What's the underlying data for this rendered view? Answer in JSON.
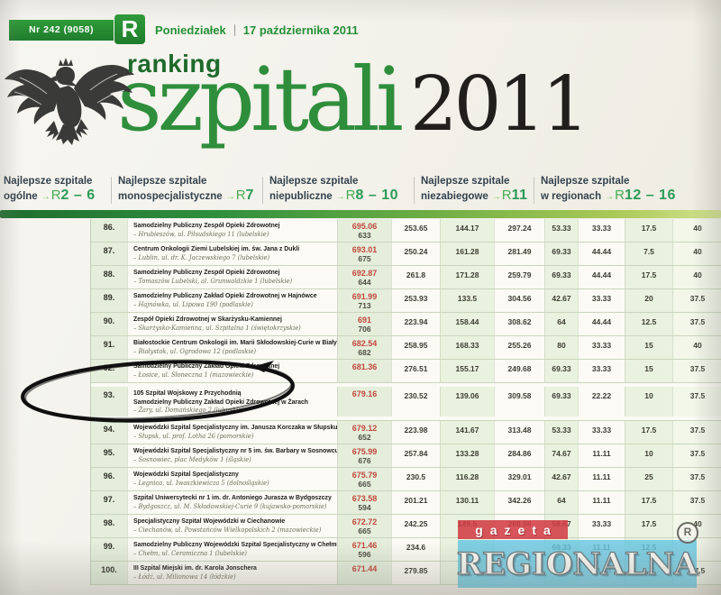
{
  "masthead": {
    "issue_no": "Nr 242 (9058)",
    "brand_letter": "R",
    "weekday": "Poniedziałek",
    "date": "17 października 2011"
  },
  "title": {
    "kicker": "ranking",
    "word": "szpitali",
    "year": "2011"
  },
  "nav": {
    "items": [
      {
        "line1": "Najlepsze szpitale",
        "label": "ogólne",
        "ref_letter": "R",
        "ref_pages": "2 – 6"
      },
      {
        "line1": "Najlepsze szpitale",
        "label": "monospecjalistyczne",
        "ref_letter": "R",
        "ref_pages": "7"
      },
      {
        "line1": "Najlepsze szpitale",
        "label": "niepubliczne",
        "ref_letter": "R",
        "ref_pages": "8 – 10"
      },
      {
        "line1": "Najlepsze szpitale",
        "label": "niezabiegowe",
        "ref_letter": "R",
        "ref_pages": "11"
      },
      {
        "line1": "Najlepsze szpitale",
        "label": "w regionach",
        "ref_letter": "R",
        "ref_pages": "12 – 16"
      }
    ]
  },
  "table": {
    "rows": [
      {
        "rank": "86.",
        "name_lines": [
          "Samodzielny Publiczny Zespół Opieki Zdrowotnej"
        ],
        "address": "– Hrubieszów, ul. Piłsudskiego 11 (lubelskie)",
        "score": "695.06",
        "score_sub": "633",
        "values": [
          "253.65",
          "144.17",
          "297.24",
          "53.33",
          "33.33",
          "17.5",
          "40"
        ]
      },
      {
        "rank": "87.",
        "name_lines": [
          "Centrum Onkologii Ziemi Lubelskiej im. św. Jana z Dukli"
        ],
        "address": "– Lublin, ul. dr. K. Jaczewskiego 7 (lubelskie)",
        "score": "693.01",
        "score_sub": "675",
        "values": [
          "250.24",
          "161.28",
          "281.49",
          "69.33",
          "44.44",
          "7.5",
          "40"
        ]
      },
      {
        "rank": "88.",
        "name_lines": [
          "Samodzielny Publiczny Zespół Opieki Zdrowotnej"
        ],
        "address": "– Tomaszów Lubelski, al. Grunwaldzkie 1 (lubelskie)",
        "score": "692.87",
        "score_sub": "644",
        "values": [
          "261.8",
          "171.28",
          "259.79",
          "69.33",
          "44.44",
          "17.5",
          "40"
        ]
      },
      {
        "rank": "89.",
        "name_lines": [
          "Samodzielny Publiczny Zakład Opieki Zdrowotnej w Hajnówce"
        ],
        "address": "– Hajnówka, ul. Lipowa 190 (podlaskie)",
        "score": "691.99",
        "score_sub": "713",
        "values": [
          "253.93",
          "133.5",
          "304.56",
          "42.67",
          "33.33",
          "20",
          "37.5"
        ]
      },
      {
        "rank": "90.",
        "name_lines": [
          "Zespół Opieki Zdrowotnej w Skarżysku-Kamiennej"
        ],
        "address": "– Skarżysko-Kamienna, ul. Szpitalna 1 (świętokrzyskie)",
        "score": "691",
        "score_sub": "706",
        "values": [
          "223.94",
          "158.44",
          "308.62",
          "64",
          "44.44",
          "12.5",
          "37.5"
        ]
      },
      {
        "rank": "91.",
        "name_lines": [
          "Białostockie Centrum Onkologii im. Marii Skłodowskiej-Curie w Białymstoku"
        ],
        "address": "– Białystok, ul. Ogrodowa 12 (podlaskie)",
        "score": "682.54",
        "score_sub": "682",
        "values": [
          "258.95",
          "168.33",
          "255.26",
          "80",
          "33.33",
          "15",
          "40"
        ]
      },
      {
        "rank": "92.",
        "name_lines": [
          "Samodzielny Publiczny Zakład Opieki Zdrowotnej"
        ],
        "address": "– Łosice, ul. Słoneczna 1 (mazowieckie)",
        "score": "681.36",
        "score_sub": "",
        "values": [
          "276.51",
          "155.17",
          "249.68",
          "69.33",
          "33.33",
          "15",
          "37.5"
        ]
      },
      {
        "rank": "93.",
        "name_lines": [
          "105 Szpital Wojskowy z Przychodnią",
          "Samodzielny Publiczny Zakład Opieki Zdrowotnej w Żarach"
        ],
        "address": "– Żary, ul. Domańskiego 2 (lubuskie)",
        "score": "679.16",
        "score_sub": "",
        "values": [
          "230.52",
          "139.06",
          "309.58",
          "69.33",
          "22.22",
          "10",
          "37.5"
        ],
        "circled": true
      },
      {
        "rank": "94.",
        "name_lines": [
          "Wojewódzki Szpital Specjalistyczny im. Janusza Korczaka w Słupsku"
        ],
        "address": "– Słupsk, ul. prof. Lotha 26 (pomorskie)",
        "score": "679.12",
        "score_sub": "652",
        "values": [
          "223.98",
          "141.67",
          "313.48",
          "53.33",
          "33.33",
          "17.5",
          "37.5"
        ]
      },
      {
        "rank": "95.",
        "name_lines": [
          "Wojewódzki Szpital Specjalistyczny nr 5 im. św. Barbary w Sosnowcu"
        ],
        "address": "– Sosnowiec, plac Medyków 1 (śląskie)",
        "score": "675.99",
        "score_sub": "676",
        "values": [
          "257.84",
          "133.28",
          "284.86",
          "74.67",
          "11.11",
          "10",
          "37.5"
        ]
      },
      {
        "rank": "96.",
        "name_lines": [
          "Wojewódzki Szpital Specjalistyczny"
        ],
        "address": "– Legnica, ul. Iwaszkiewicza 5 (dolnośląskie)",
        "score": "675.79",
        "score_sub": "665",
        "values": [
          "230.5",
          "116.28",
          "329.01",
          "42.67",
          "11.11",
          "25",
          "37.5"
        ]
      },
      {
        "rank": "97.",
        "name_lines": [
          "Szpital Uniwersytecki nr 1 im. dr. Antoniego Jurasza w Bydgoszczy"
        ],
        "address": "– Bydgoszcz, ul. M. Skłodowskiej-Curie 9 (kujawsko-pomorskie)",
        "score": "673.58",
        "score_sub": "594",
        "values": [
          "201.21",
          "130.11",
          "342.26",
          "64",
          "11.11",
          "17.5",
          "37.5"
        ]
      },
      {
        "rank": "98.",
        "name_lines": [
          "Specjalistyczny Szpital Wojewódzki w Ciechanowie"
        ],
        "address": "– Ciechanów, ul. Powstańców Wielkopolskich 2 (mazowieckie)",
        "score": "672.72",
        "score_sub": "665",
        "values": [
          "242.25",
          "149.5",
          "280.98",
          "58.67",
          "33.33",
          "17.5",
          "40"
        ]
      },
      {
        "rank": "99.",
        "name_lines": [
          "Samodzielny Publiczny Wojewódzki Szpital Specjalistyczny w Chełmie"
        ],
        "address": "– Chełm, ul. Ceramiczna 1 (lubelskie)",
        "score": "671.46",
        "score_sub": "596",
        "values": [
          "234.6",
          "",
          "",
          "69.33",
          "11.11",
          "12.5",
          ""
        ]
      },
      {
        "rank": "100.",
        "name_lines": [
          "III Szpital Miejski im. dr. Karola Jonschera"
        ],
        "address": "– Łódź, ul. Milionowa 14 (łódzkie)",
        "score": "671.44",
        "score_sub": "",
        "values": [
          "279.85",
          "",
          "",
          "",
          "33.33",
          "",
          "37.5"
        ]
      }
    ]
  },
  "annotation": {
    "type": "hand-drawn-circle",
    "target_rank": "93."
  },
  "logo": {
    "top": "gazeta",
    "bottom": "REGIONALNA",
    "registered": "R"
  },
  "colors": {
    "brand_green": "#2a9235",
    "headline_green": "#2f8e3c",
    "score_red": "#c2473c",
    "logo_red": "#d23e46",
    "logo_cyan": "#66c6e2"
  }
}
